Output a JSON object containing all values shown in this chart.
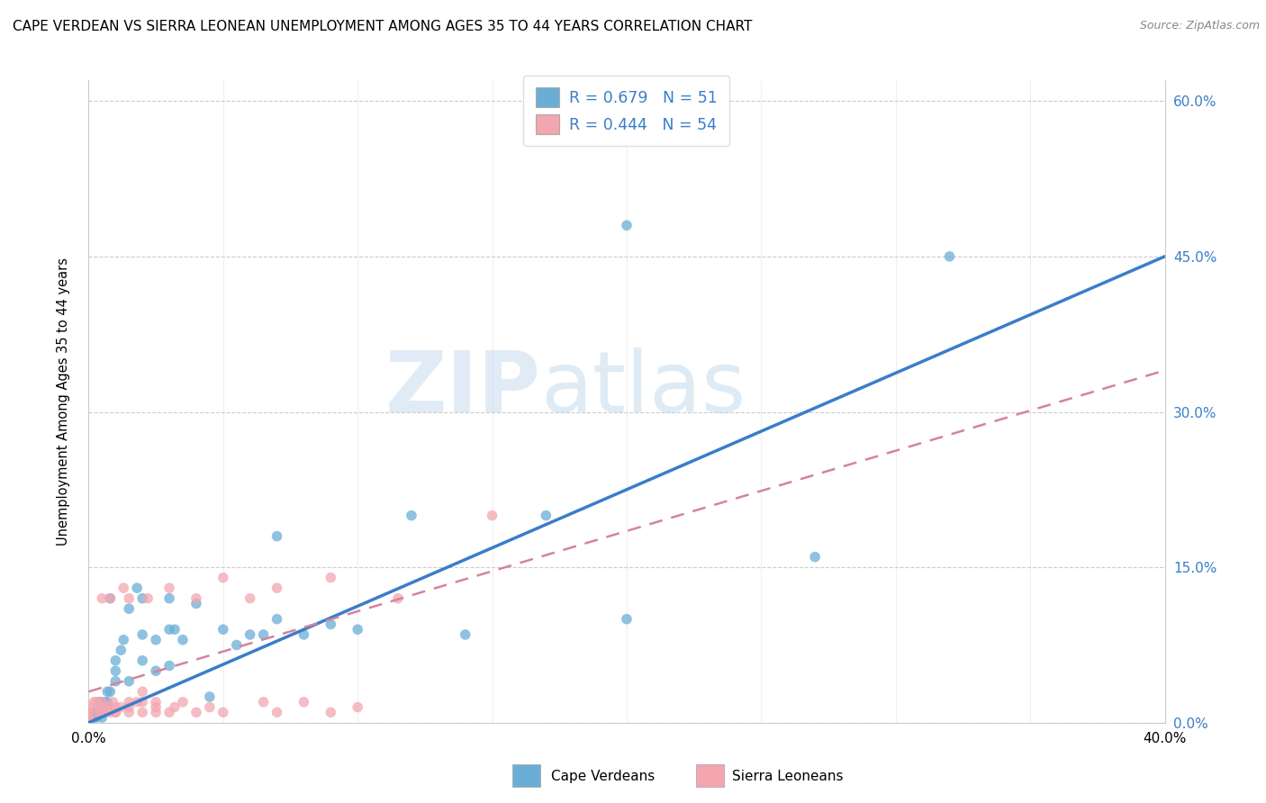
{
  "title": "CAPE VERDEAN VS SIERRA LEONEAN UNEMPLOYMENT AMONG AGES 35 TO 44 YEARS CORRELATION CHART",
  "source": "Source: ZipAtlas.com",
  "ylabel": "Unemployment Among Ages 35 to 44 years",
  "xlim": [
    0.0,
    0.4
  ],
  "ylim": [
    0.0,
    0.62
  ],
  "x_ticks": [
    0.0,
    0.05,
    0.1,
    0.15,
    0.2,
    0.25,
    0.3,
    0.35,
    0.4
  ],
  "x_tick_labels_show": [
    true,
    false,
    false,
    false,
    false,
    false,
    false,
    false,
    true
  ],
  "x_tick_labels": [
    "0.0%",
    "",
    "",
    "",
    "",
    "",
    "",
    "",
    "40.0%"
  ],
  "y_ticks_right": [
    0.0,
    0.15,
    0.3,
    0.45,
    0.6
  ],
  "y_tick_labels_right": [
    "0.0%",
    "15.0%",
    "30.0%",
    "45.0%",
    "60.0%"
  ],
  "legend_r1": "R = 0.679",
  "legend_n1": "N = 51",
  "legend_r2": "R = 0.444",
  "legend_n2": "N = 54",
  "color_blue": "#6aaed6",
  "color_pink": "#f4a6b0",
  "color_blue_line": "#3a7dc9",
  "color_pink_line": "#e88fa0",
  "color_pink_line_dark": "#d4849a",
  "watermark_zip": "ZIP",
  "watermark_atlas": "atlas",
  "cv_line_x0": 0.0,
  "cv_line_y0": 0.0,
  "cv_line_x1": 0.4,
  "cv_line_y1": 0.45,
  "sl_line_x0": 0.0,
  "sl_line_y0": 0.03,
  "sl_line_x1": 0.4,
  "sl_line_y1": 0.34,
  "cape_verdean_x": [
    0.0,
    0.002,
    0.002,
    0.003,
    0.003,
    0.004,
    0.004,
    0.005,
    0.005,
    0.005,
    0.006,
    0.007,
    0.007,
    0.008,
    0.008,
    0.01,
    0.01,
    0.01,
    0.012,
    0.013,
    0.015,
    0.015,
    0.018,
    0.02,
    0.02,
    0.02,
    0.025,
    0.025,
    0.03,
    0.03,
    0.03,
    0.032,
    0.035,
    0.04,
    0.045,
    0.05,
    0.055,
    0.06,
    0.065,
    0.07,
    0.07,
    0.08,
    0.09,
    0.1,
    0.12,
    0.14,
    0.17,
    0.2,
    0.2,
    0.27,
    0.32
  ],
  "cape_verdean_y": [
    0.0,
    0.005,
    0.01,
    0.005,
    0.01,
    0.01,
    0.02,
    0.005,
    0.01,
    0.015,
    0.02,
    0.02,
    0.03,
    0.03,
    0.12,
    0.04,
    0.05,
    0.06,
    0.07,
    0.08,
    0.04,
    0.11,
    0.13,
    0.06,
    0.085,
    0.12,
    0.05,
    0.08,
    0.055,
    0.09,
    0.12,
    0.09,
    0.08,
    0.115,
    0.025,
    0.09,
    0.075,
    0.085,
    0.085,
    0.1,
    0.18,
    0.085,
    0.095,
    0.09,
    0.2,
    0.085,
    0.2,
    0.1,
    0.48,
    0.16,
    0.45
  ],
  "sierra_leonean_x": [
    0.0,
    0.0,
    0.0,
    0.0,
    0.0,
    0.002,
    0.002,
    0.003,
    0.004,
    0.005,
    0.005,
    0.005,
    0.005,
    0.006,
    0.007,
    0.008,
    0.008,
    0.009,
    0.01,
    0.01,
    0.01,
    0.012,
    0.013,
    0.015,
    0.015,
    0.015,
    0.015,
    0.018,
    0.02,
    0.02,
    0.02,
    0.022,
    0.025,
    0.025,
    0.025,
    0.03,
    0.03,
    0.032,
    0.035,
    0.04,
    0.04,
    0.045,
    0.05,
    0.05,
    0.06,
    0.065,
    0.07,
    0.07,
    0.08,
    0.09,
    0.09,
    0.1,
    0.115,
    0.15
  ],
  "sierra_leonean_y": [
    0.0,
    0.005,
    0.005,
    0.01,
    0.015,
    0.01,
    0.02,
    0.02,
    0.01,
    0.01,
    0.015,
    0.02,
    0.12,
    0.015,
    0.015,
    0.01,
    0.12,
    0.02,
    0.01,
    0.01,
    0.015,
    0.015,
    0.13,
    0.01,
    0.015,
    0.02,
    0.12,
    0.02,
    0.01,
    0.02,
    0.03,
    0.12,
    0.01,
    0.015,
    0.02,
    0.01,
    0.13,
    0.015,
    0.02,
    0.01,
    0.12,
    0.015,
    0.01,
    0.14,
    0.12,
    0.02,
    0.01,
    0.13,
    0.02,
    0.01,
    0.14,
    0.015,
    0.12,
    0.2
  ]
}
